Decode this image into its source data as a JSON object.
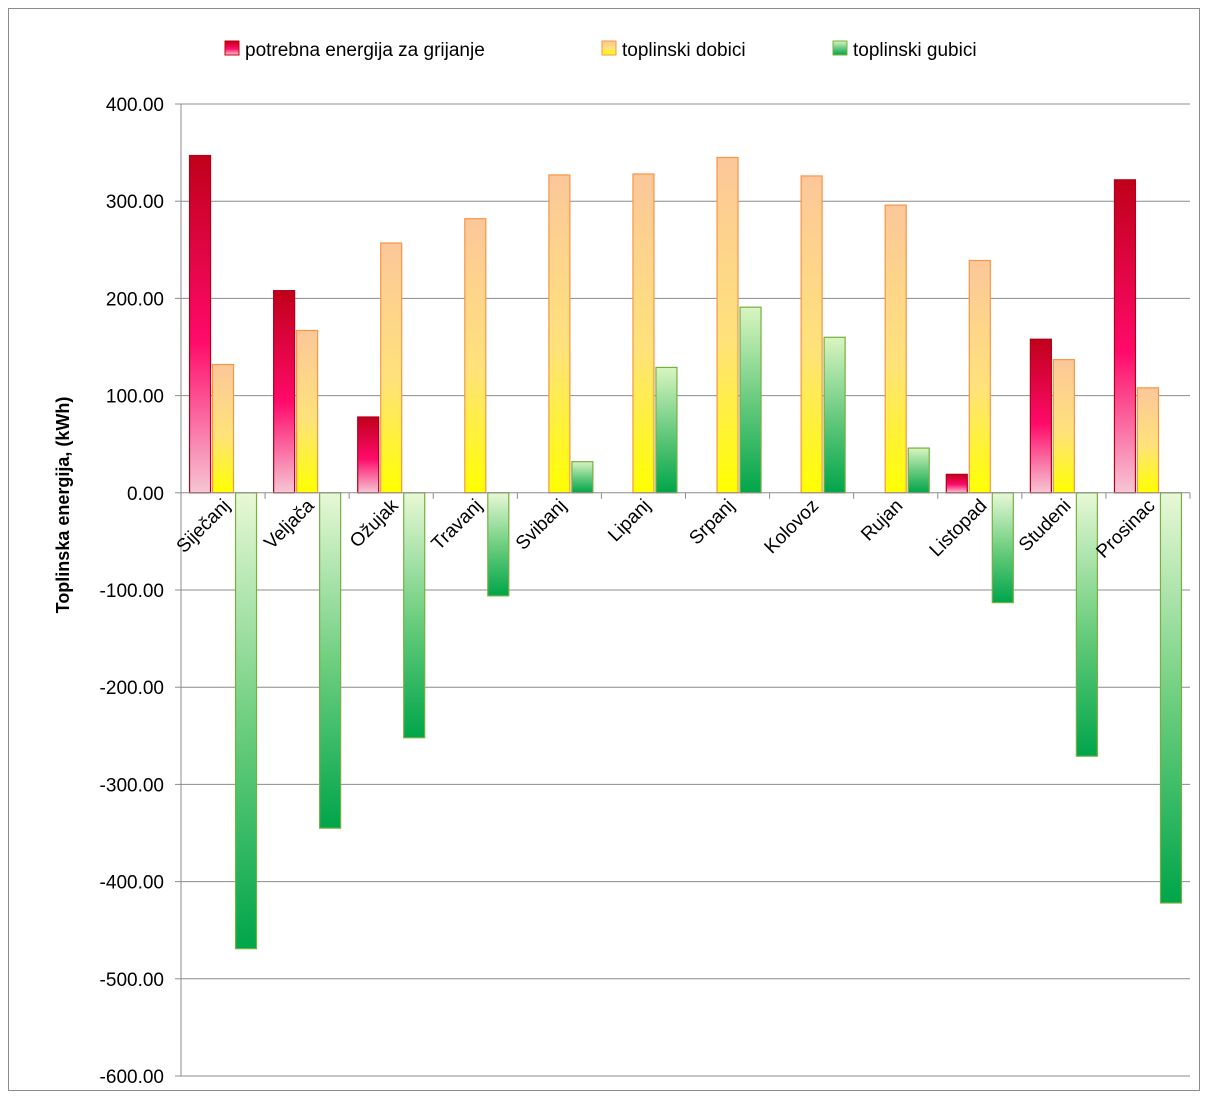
{
  "chart_data": {
    "type": "bar",
    "title": "",
    "xlabel": "",
    "ylabel": "Toplinska energija, (kWh)",
    "ylim": [
      -600,
      400
    ],
    "yticks": [
      400,
      300,
      200,
      100,
      0,
      -100,
      -200,
      -300,
      -400,
      -500,
      -600
    ],
    "ytick_labels": [
      "400.00",
      "300.00",
      "200.00",
      "100.00",
      "0.00",
      "-100.00",
      "-200.00",
      "-300.00",
      "-400.00",
      "-500.00",
      "-600.00"
    ],
    "grid": true,
    "legend_position": "top",
    "categories": [
      "Siječanj",
      "Veljača",
      "Ožujak",
      "Travanj",
      "Svibanj",
      "Lipanj",
      "Srpanj",
      "Kolovoz",
      "Rujan",
      "Listopad",
      "Studeni",
      "Prosinac"
    ],
    "series": [
      {
        "name": "potrebna energija za grijanje",
        "color": "#c00000",
        "values": [
          347,
          208,
          78,
          0,
          0,
          0,
          0,
          0,
          0,
          19,
          158,
          322
        ]
      },
      {
        "name": "toplinski dobici",
        "color": "#f79646",
        "values": [
          132,
          167,
          257,
          282,
          327,
          328,
          345,
          326,
          296,
          239,
          137,
          108
        ]
      },
      {
        "name": "toplinski gubici",
        "color": "#00b050",
        "values": [
          -469,
          -345,
          -252,
          -106,
          32,
          129,
          191,
          160,
          46,
          -113,
          -271,
          -422
        ]
      }
    ]
  }
}
